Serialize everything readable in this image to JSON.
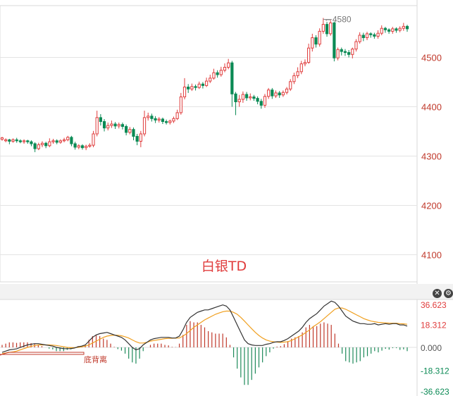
{
  "chart_data": [
    {
      "type": "candlestick",
      "title": "白银TD",
      "y_ticks": [
        4100,
        4200,
        4300,
        4400,
        4500
      ],
      "ylim": [
        4045,
        4605
      ],
      "max_marker": "4580",
      "max_value": 4580,
      "colors": {
        "up": "#e03c3c",
        "down": "#0b8a55",
        "axis_text": "#c0392b"
      },
      "candles": [
        [
          4334,
          4337,
          4339,
          4331
        ],
        [
          4331,
          4333,
          4336,
          4328
        ],
        [
          4333,
          4330,
          4335,
          4324
        ],
        [
          4330,
          4333,
          4336,
          4327
        ],
        [
          4333,
          4331,
          4337,
          4327
        ],
        [
          4331,
          4329,
          4334,
          4326
        ],
        [
          4329,
          4331,
          4334,
          4325
        ],
        [
          4331,
          4329,
          4333,
          4325
        ],
        [
          4329,
          4325,
          4332,
          4320
        ],
        [
          4325,
          4315,
          4328,
          4308
        ],
        [
          4315,
          4323,
          4327,
          4312
        ],
        [
          4323,
          4326,
          4330,
          4318
        ],
        [
          4326,
          4321,
          4329,
          4316
        ],
        [
          4321,
          4329,
          4336,
          4318
        ],
        [
          4329,
          4331,
          4335,
          4325
        ],
        [
          4331,
          4328,
          4334,
          4324
        ],
        [
          4328,
          4331,
          4334,
          4325
        ],
        [
          4331,
          4333,
          4337,
          4328
        ],
        [
          4333,
          4338,
          4341,
          4330
        ],
        [
          4338,
          4325,
          4341,
          4320
        ],
        [
          4325,
          4318,
          4329,
          4313
        ],
        [
          4318,
          4321,
          4324,
          4314
        ],
        [
          4321,
          4317,
          4324,
          4313
        ],
        [
          4317,
          4320,
          4323,
          4312
        ],
        [
          4320,
          4322,
          4326,
          4317
        ],
        [
          4322,
          4345,
          4351,
          4318
        ],
        [
          4345,
          4378,
          4392,
          4340
        ],
        [
          4378,
          4370,
          4385,
          4362
        ],
        [
          4370,
          4357,
          4375,
          4350
        ],
        [
          4357,
          4362,
          4368,
          4352
        ],
        [
          4362,
          4365,
          4372,
          4357
        ],
        [
          4365,
          4361,
          4369,
          4355
        ],
        [
          4361,
          4364,
          4368,
          4356
        ],
        [
          4364,
          4360,
          4368,
          4354
        ],
        [
          4360,
          4348,
          4364,
          4342
        ],
        [
          4348,
          4354,
          4359,
          4344
        ],
        [
          4354,
          4340,
          4358,
          4332
        ],
        [
          4340,
          4330,
          4345,
          4322
        ],
        [
          4330,
          4345,
          4351,
          4318
        ],
        [
          4345,
          4378,
          4392,
          4340
        ],
        [
          4378,
          4381,
          4388,
          4372
        ],
        [
          4381,
          4376,
          4386,
          4370
        ],
        [
          4376,
          4373,
          4381,
          4367
        ],
        [
          4373,
          4375,
          4379,
          4368
        ],
        [
          4375,
          4370,
          4378,
          4365
        ],
        [
          4370,
          4368,
          4374,
          4364
        ],
        [
          4368,
          4371,
          4374,
          4364
        ],
        [
          4371,
          4376,
          4380,
          4367
        ],
        [
          4376,
          4388,
          4394,
          4373
        ],
        [
          4388,
          4420,
          4428,
          4384
        ],
        [
          4420,
          4440,
          4458,
          4415
        ],
        [
          4440,
          4436,
          4446,
          4428
        ],
        [
          4436,
          4441,
          4447,
          4432
        ],
        [
          4441,
          4439,
          4445,
          4433
        ],
        [
          4439,
          4446,
          4451,
          4436
        ],
        [
          4446,
          4443,
          4450,
          4437
        ],
        [
          4443,
          4452,
          4459,
          4440
        ],
        [
          4452,
          4458,
          4465,
          4448
        ],
        [
          4458,
          4469,
          4477,
          4455
        ],
        [
          4469,
          4465,
          4474,
          4459
        ],
        [
          4465,
          4474,
          4481,
          4461
        ],
        [
          4474,
          4480,
          4488,
          4470
        ],
        [
          4480,
          4489,
          4497,
          4476
        ],
        [
          4489,
          4426,
          4493,
          4400
        ],
        [
          4426,
          4410,
          4430,
          4383
        ],
        [
          4410,
          4415,
          4424,
          4400
        ],
        [
          4415,
          4425,
          4431,
          4408
        ],
        [
          4425,
          4418,
          4430,
          4412
        ],
        [
          4418,
          4420,
          4427,
          4413
        ],
        [
          4420,
          4417,
          4424,
          4412
        ],
        [
          4417,
          4411,
          4421,
          4405
        ],
        [
          4411,
          4403,
          4416,
          4396
        ],
        [
          4403,
          4421,
          4426,
          4398
        ],
        [
          4421,
          4434,
          4438,
          4416
        ],
        [
          4434,
          4422,
          4438,
          4416
        ],
        [
          4422,
          4428,
          4433,
          4418
        ],
        [
          4428,
          4424,
          4432,
          4418
        ],
        [
          4424,
          4429,
          4433,
          4420
        ],
        [
          4429,
          4436,
          4440,
          4425
        ],
        [
          4436,
          4451,
          4456,
          4432
        ],
        [
          4451,
          4463,
          4469,
          4446
        ],
        [
          4463,
          4471,
          4480,
          4458
        ],
        [
          4471,
          4487,
          4493,
          4466
        ],
        [
          4487,
          4490,
          4496,
          4482
        ],
        [
          4490,
          4519,
          4528,
          4487
        ],
        [
          4519,
          4540,
          4548,
          4512
        ],
        [
          4540,
          4527,
          4545,
          4520
        ],
        [
          4527,
          4553,
          4559,
          4522
        ],
        [
          4553,
          4567,
          4580,
          4548
        ],
        [
          4567,
          4548,
          4572,
          4542
        ],
        [
          4548,
          4570,
          4576,
          4544
        ],
        [
          4570,
          4499,
          4573,
          4492
        ],
        [
          4499,
          4516,
          4520,
          4494
        ],
        [
          4516,
          4512,
          4520,
          4504
        ],
        [
          4512,
          4510,
          4517,
          4503
        ],
        [
          4510,
          4506,
          4515,
          4500
        ],
        [
          4506,
          4517,
          4520,
          4498
        ],
        [
          4517,
          4532,
          4537,
          4512
        ],
        [
          4532,
          4545,
          4551,
          4528
        ],
        [
          4545,
          4540,
          4550,
          4533
        ],
        [
          4540,
          4548,
          4552,
          4535
        ],
        [
          4548,
          4546,
          4551,
          4540
        ],
        [
          4546,
          4543,
          4550,
          4538
        ],
        [
          4543,
          4549,
          4555,
          4538
        ],
        [
          4549,
          4559,
          4565,
          4545
        ],
        [
          4559,
          4556,
          4562,
          4550
        ],
        [
          4556,
          4553,
          4559,
          4548
        ],
        [
          4553,
          4558,
          4562,
          4548
        ],
        [
          4558,
          4555,
          4561,
          4550
        ],
        [
          4555,
          4559,
          4563,
          4551
        ],
        [
          4559,
          4563,
          4570,
          4554
        ],
        [
          4563,
          4558,
          4566,
          4552
        ]
      ]
    },
    {
      "type": "macd",
      "y_ticks": [
        "36.623",
        "18.312",
        "0.000",
        "-18.312",
        "-36.623"
      ],
      "ylim": [
        -36.623,
        36.623
      ],
      "annotation": "底背离",
      "colors": {
        "dif": "#333333",
        "dea": "#f0a020",
        "positive": "#c0392b",
        "negative": "#1e8a5a"
      },
      "dif": [
        -4,
        -3,
        -2,
        -1.6,
        -1.2,
        0,
        1,
        2,
        2.5,
        3,
        3,
        2.5,
        2,
        1.5,
        1,
        0,
        -0.5,
        -1,
        -1,
        -1,
        -0.5,
        0.5,
        1,
        2,
        5,
        8,
        10,
        11,
        11.5,
        12,
        11,
        10,
        9,
        8,
        6,
        3,
        0,
        -2,
        -1,
        2,
        4,
        6,
        7,
        7.5,
        8,
        8,
        8,
        7.5,
        7.5,
        9,
        14,
        20,
        24,
        26,
        28,
        29,
        30,
        30,
        31,
        32,
        33,
        34,
        33,
        30,
        24,
        18,
        12,
        6,
        3,
        2,
        1.5,
        1.5,
        1.5,
        2.5,
        3,
        4,
        4.5,
        4.5,
        5.5,
        7,
        9,
        11,
        13,
        16,
        20,
        23,
        25,
        27,
        30,
        33,
        35,
        37,
        36,
        33,
        29,
        25,
        23,
        21,
        20,
        19,
        19,
        18.5,
        18.5,
        19,
        18,
        18.5,
        19,
        18.5,
        19,
        19,
        18,
        18,
        17
      ],
      "dea": [
        -5,
        -4.5,
        -4,
        -3.6,
        -3,
        -2,
        -1,
        0,
        0.8,
        1.5,
        2,
        2,
        2,
        2,
        1.8,
        1.5,
        1,
        0.5,
        0,
        -0.2,
        -0.2,
        0,
        0.5,
        1,
        2,
        3.5,
        5,
        6.5,
        8,
        9,
        9.5,
        9.8,
        9.7,
        9.3,
        8.5,
        7.5,
        6,
        4.5,
        3.5,
        3.5,
        4,
        5,
        5.5,
        6,
        6.5,
        7,
        7.2,
        7.3,
        7.4,
        7.5,
        9,
        11,
        13.5,
        16,
        18,
        20,
        22,
        23.5,
        25,
        26.5,
        27.5,
        28.5,
        29,
        29,
        28,
        26.5,
        24,
        21,
        18,
        15,
        12,
        9.5,
        7.5,
        6,
        5,
        4.5,
        4.2,
        4,
        4.2,
        4.5,
        5.5,
        7,
        8.5,
        10,
        12,
        14,
        16.5,
        18.5,
        20.5,
        23,
        25.5,
        28,
        30.5,
        31.5,
        31.5,
        30.5,
        29,
        27.5,
        26,
        24.5,
        23,
        22,
        21,
        20.5,
        20,
        19.8,
        19.6,
        19.4,
        19.3,
        19.3,
        19,
        18.8,
        18.5
      ]
    }
  ]
}
